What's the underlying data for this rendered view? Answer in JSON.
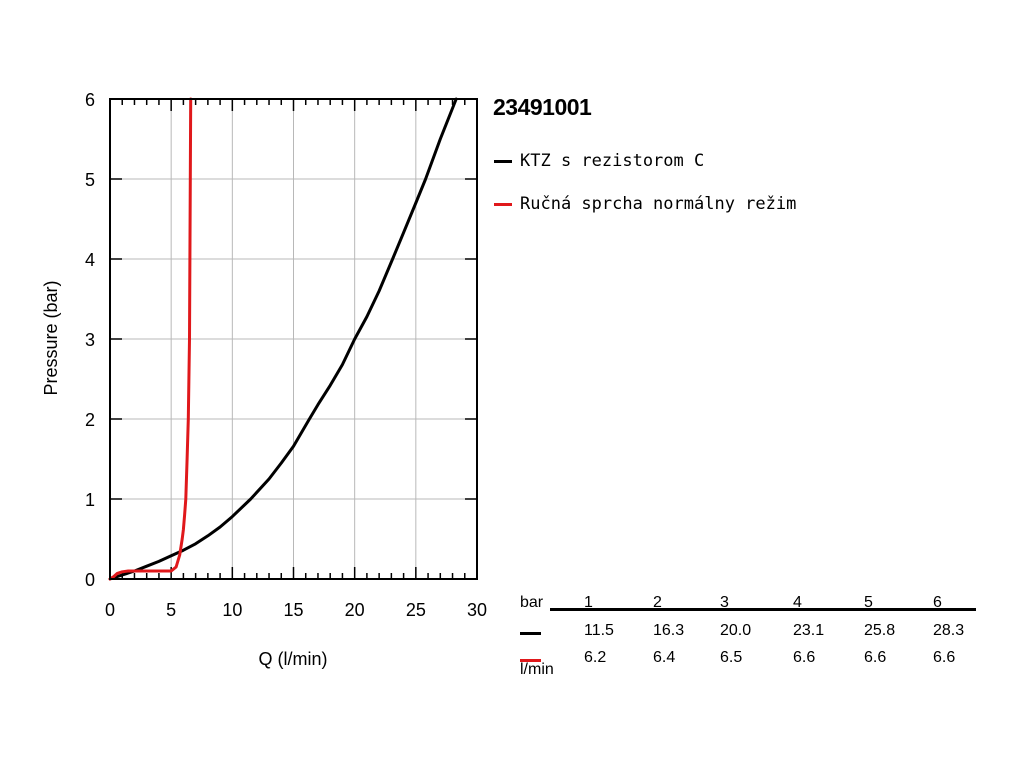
{
  "chart_data": {
    "type": "line",
    "title": "23491001",
    "xlabel": "Q (l/min)",
    "ylabel": "Pressure (bar)",
    "xlim": [
      0,
      30
    ],
    "ylim": [
      0,
      6
    ],
    "x_ticks": [
      "0",
      "5",
      "10",
      "15",
      "20",
      "25",
      "30"
    ],
    "y_ticks": [
      "0",
      "1",
      "2",
      "3",
      "4",
      "5",
      "6"
    ],
    "grid": true,
    "legend_position": "top-right, outside plot",
    "series": [
      {
        "name": "KTZ s rezistorom C",
        "color": "#000000",
        "x": [
          0,
          1,
          2,
          3,
          4,
          5,
          6,
          7,
          8,
          9,
          10,
          11.5,
          13,
          14,
          15,
          16.3,
          17,
          18,
          19,
          20,
          21,
          22,
          23.1,
          24,
          25,
          25.8,
          27,
          28.3
        ],
        "y": [
          0,
          0.05,
          0.1,
          0.16,
          0.22,
          0.29,
          0.36,
          0.44,
          0.54,
          0.65,
          0.78,
          1.0,
          1.25,
          1.45,
          1.66,
          2.0,
          2.18,
          2.42,
          2.68,
          3.0,
          3.28,
          3.6,
          4.0,
          4.33,
          4.7,
          5.0,
          5.5,
          6.0
        ]
      },
      {
        "name": "Ručná sprcha normálny režim",
        "color": "#e0181b",
        "x": [
          0,
          0.3,
          0.6,
          1.0,
          1.5,
          2.5,
          4.0,
          5.0,
          5.4,
          5.7,
          5.9,
          6.0,
          6.1,
          6.2,
          6.3,
          6.4,
          6.5,
          6.6
        ],
        "y": [
          0,
          0.03,
          0.07,
          0.09,
          0.1,
          0.1,
          0.1,
          0.1,
          0.15,
          0.3,
          0.5,
          0.62,
          0.8,
          1.0,
          1.5,
          2.0,
          3.0,
          6.0
        ]
      }
    ]
  },
  "table": {
    "header_label": "bar",
    "pressures": [
      "1",
      "2",
      "3",
      "4",
      "5",
      "6"
    ],
    "rows": [
      {
        "color": "#000000",
        "values": [
          "11.5",
          "16.3",
          "20.0",
          "23.1",
          "25.8",
          "28.3"
        ]
      },
      {
        "color": "#e0181b",
        "values": [
          "6.2",
          "6.4",
          "6.5",
          "6.6",
          "6.6",
          "6.6"
        ]
      }
    ],
    "unit_label": "l/min"
  }
}
